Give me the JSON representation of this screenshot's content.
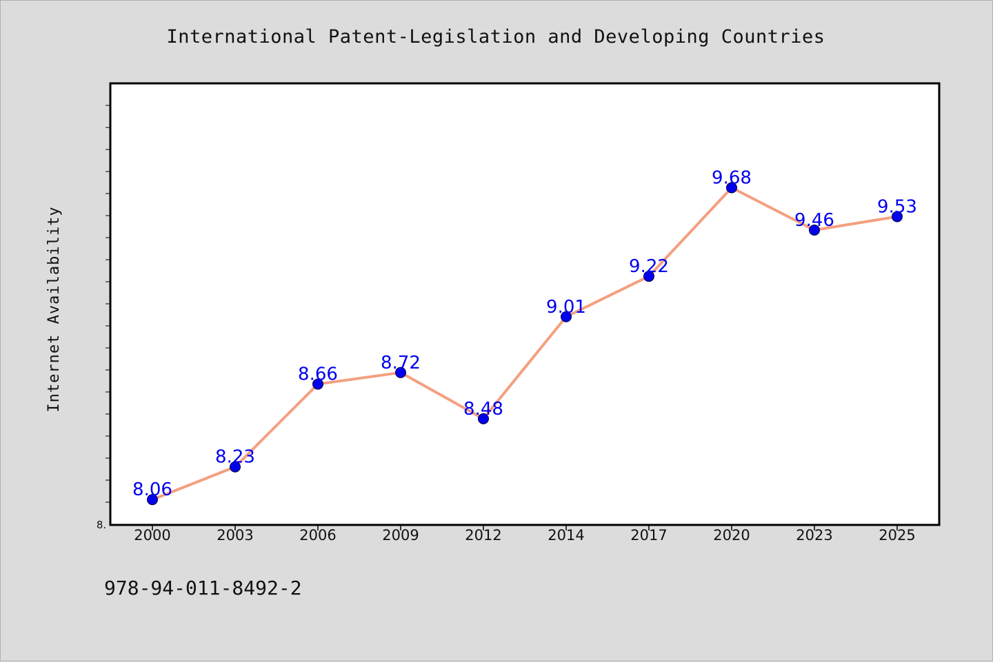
{
  "chart_data": {
    "type": "line",
    "title": "International Patent-Legislation and Developing Countries",
    "xlabel": "",
    "ylabel": "Internet Availability",
    "categories": [
      "2000",
      "2003",
      "2006",
      "2009",
      "2012",
      "2014",
      "2017",
      "2020",
      "2023",
      "2025"
    ],
    "series": [
      {
        "values": [
          8.06,
          8.23,
          8.66,
          8.72,
          8.48,
          9.01,
          9.22,
          9.68,
          9.46,
          9.53
        ],
        "line_color": "#f4a080",
        "marker_color": "#0000ee",
        "label_color": "#0000ee"
      }
    ],
    "ylim": [
      8.0,
      10.0
    ],
    "y_tick_label": "8.",
    "grid": false,
    "legend": "none"
  },
  "footer": {
    "isbn": "978-94-011-8492-2"
  },
  "colors": {
    "background": "#dcdcdc",
    "plot_background": "#ffffff",
    "axis": "#000000"
  }
}
